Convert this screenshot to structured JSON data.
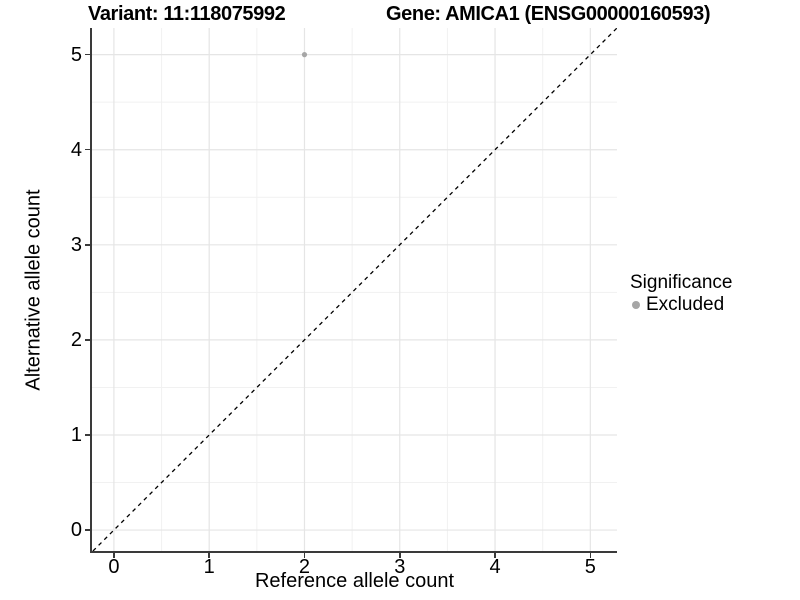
{
  "header": {
    "title_left": "Variant: 11:118075992",
    "title_right": "Gene: AMICA1 (ENSG00000160593)"
  },
  "chart_data": {
    "type": "scatter",
    "title": "Variant: 11:118075992   Gene: AMICA1 (ENSG00000160593)",
    "xlabel": "Reference allele count",
    "ylabel": "Alternative allele count",
    "xlim": [
      -0.23,
      5.28
    ],
    "ylim": [
      -0.22,
      5.28
    ],
    "xticks": [
      0,
      1,
      2,
      3,
      4,
      5
    ],
    "yticks": [
      0,
      1,
      2,
      3,
      4,
      5
    ],
    "minor_xticks": [
      0.5,
      1.5,
      2.5,
      3.5,
      4.5
    ],
    "minor_yticks": [
      0.5,
      1.5,
      2.5,
      3.5,
      4.5
    ],
    "grid": "major+minor",
    "identity_line": {
      "slope": 1,
      "intercept": 0,
      "style": "dashed",
      "color": "#000000"
    },
    "series": [
      {
        "name": "Excluded",
        "color": "#a6a6a6",
        "marker_radius": 2.6,
        "points": [
          {
            "x": 2,
            "y": 5
          }
        ]
      }
    ],
    "legend": {
      "title": "Significance",
      "position": "right",
      "items": [
        {
          "label": "Excluded",
          "color": "#a6a6a6"
        }
      ]
    }
  },
  "colors": {
    "background": "#ffffff",
    "grid_major": "#e5e5e5",
    "grid_minor": "#f1f1f1",
    "axis_line": "#3a3a3a",
    "text": "#000000"
  }
}
